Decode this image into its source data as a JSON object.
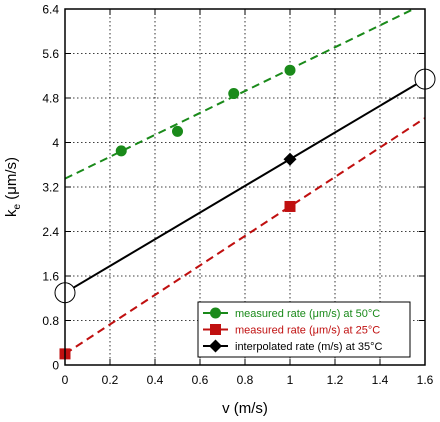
{
  "chart_data": {
    "type": "scatter",
    "title": "",
    "xlabel": "v (m/s)",
    "ylabel_main": "k",
    "ylabel_sub": "e",
    "ylabel_unit": " (μm/s)",
    "xlim": [
      0,
      1.6
    ],
    "ylim": [
      0,
      6.4
    ],
    "x_ticks": [
      "0",
      "0.2",
      "0.4",
      "0.6",
      "0.8",
      "1",
      "1.2",
      "1.4",
      "1.6"
    ],
    "y_ticks": [
      "0",
      "0.8",
      "1.6",
      "2.4",
      "3.2",
      "4",
      "4.8",
      "5.6",
      "6.4"
    ],
    "grid": true,
    "legend_position": "bottom-right",
    "series": [
      {
        "name": "measured rate (μm/s) at 50°C",
        "color": "#1a8a1a",
        "marker": "circle",
        "x": [
          0.25,
          0.5,
          0.75,
          1.0
        ],
        "y": [
          3.85,
          4.2,
          4.88,
          5.3
        ],
        "fit_line": {
          "style": "dashed",
          "x": [
            0,
            1.6
          ],
          "y": [
            3.35,
            6.5
          ]
        }
      },
      {
        "name": "measured rate (μm/s) at 25°C",
        "color": "#c01010",
        "marker": "square",
        "x": [
          0.0,
          1.0
        ],
        "y": [
          0.2,
          2.85
        ],
        "fit_line": {
          "style": "dashed",
          "x": [
            0,
            1.6
          ],
          "y": [
            0.2,
            4.44
          ]
        }
      },
      {
        "name": "interpolated rate (m/s) at 35°C",
        "color": "#000000",
        "marker": "diamond",
        "x": [
          1.0
        ],
        "y": [
          3.7
        ],
        "fit_line": {
          "style": "solid",
          "x": [
            0,
            1.6
          ],
          "y": [
            1.3,
            5.14
          ]
        }
      }
    ],
    "endpoint_markers": {
      "marker": "open-circle",
      "x": [
        0.0,
        1.6
      ],
      "y": [
        1.3,
        5.14
      ]
    }
  }
}
